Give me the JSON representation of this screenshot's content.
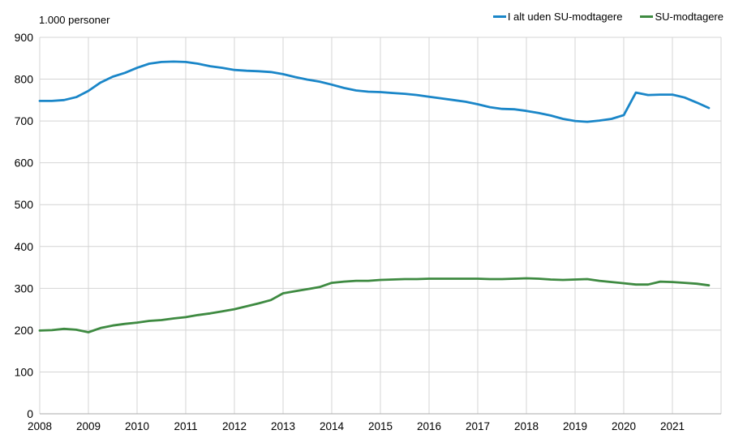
{
  "chart_data": {
    "type": "line",
    "title": "",
    "unit_label": "1.000 personer",
    "xlabel": "",
    "ylabel": "",
    "ylim": [
      0,
      900
    ],
    "y_ticks": [
      0,
      100,
      200,
      300,
      400,
      500,
      600,
      700,
      800,
      900
    ],
    "x_tick_labels": [
      "2008",
      "2009",
      "2010",
      "2011",
      "2012",
      "2013",
      "2014",
      "2015",
      "2016",
      "2017",
      "2018",
      "2019",
      "2020",
      "2021"
    ],
    "x_start_year": 2008,
    "points_per_year": 4,
    "grid": true,
    "legend_position": "top-right",
    "colors": {
      "grid": "#d4d4d4",
      "baseline": "#ababab",
      "text": "#000000",
      "background": "#ffffff"
    },
    "series": [
      {
        "name": "I alt uden SU-modtagere",
        "color": "#1a86c8",
        "values": [
          748,
          748,
          750,
          757,
          772,
          792,
          806,
          815,
          827,
          837,
          841,
          842,
          841,
          837,
          831,
          827,
          822,
          820,
          819,
          817,
          812,
          805,
          799,
          794,
          787,
          779,
          773,
          770,
          769,
          767,
          765,
          762,
          758,
          754,
          750,
          746,
          740,
          733,
          729,
          728,
          724,
          719,
          713,
          705,
          700,
          698,
          701,
          705,
          714,
          768,
          762,
          763,
          763,
          756,
          744,
          731
        ]
      },
      {
        "name": "SU-modtagere",
        "color": "#3e8a41",
        "values": [
          199,
          200,
          203,
          201,
          195,
          205,
          211,
          215,
          218,
          222,
          224,
          228,
          231,
          236,
          240,
          245,
          250,
          257,
          264,
          272,
          288,
          293,
          298,
          303,
          313,
          316,
          318,
          318,
          320,
          321,
          322,
          322,
          323,
          323,
          323,
          323,
          323,
          322,
          322,
          323,
          324,
          323,
          321,
          320,
          321,
          322,
          318,
          315,
          312,
          309,
          309,
          316,
          315,
          313,
          311,
          307
        ]
      }
    ]
  }
}
